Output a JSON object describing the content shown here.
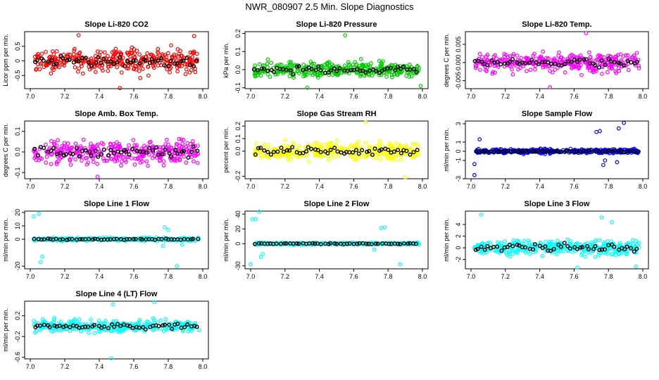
{
  "main_title": "NWR_080907  2.5 Min. Slope Diagnostics",
  "colors": {
    "black": "#000000"
  },
  "chart_data": [
    {
      "type": "scatter",
      "title": "Slope Li-820 CO2",
      "ylabel": "Licor ppm per min.",
      "xlim": [
        7.0,
        8.0
      ],
      "ylim": [
        -0.95,
        1.0
      ],
      "xticks": [
        "7.0",
        "7.2",
        "7.4",
        "7.6",
        "7.8",
        "8.0"
      ],
      "yticks": [
        "-0.5",
        "0",
        "0.5"
      ],
      "color": "#ff0000",
      "spread": 0.38,
      "clip": 0.92,
      "outliers": [
        [
          7.28,
          0.88
        ],
        [
          7.52,
          -0.93
        ],
        [
          7.95,
          0.85
        ]
      ]
    },
    {
      "type": "scatter",
      "title": "Slope Li-820 Pressure",
      "ylabel": "kPa per min.",
      "xlim": [
        7.0,
        8.0
      ],
      "ylim": [
        -0.105,
        0.21
      ],
      "xticks": [
        "7.0",
        "7.2",
        "7.4",
        "7.6",
        "7.8",
        "8.0"
      ],
      "yticks": [
        "-0.1",
        "0.0",
        "0.1",
        "0.2"
      ],
      "color": "#00cc00",
      "spread": 0.038,
      "clip": 0.12,
      "outliers": [
        [
          7.33,
          -0.1
        ],
        [
          7.99,
          -0.09
        ],
        [
          7.55,
          0.19
        ]
      ]
    },
    {
      "type": "scatter",
      "title": "Slope Li-820 Temp.",
      "ylabel": "degrees C per min.",
      "xlim": [
        7.0,
        8.0
      ],
      "ylim": [
        -0.0072,
        0.0085
      ],
      "xticks": [
        "7.0",
        "7.2",
        "7.4",
        "7.6",
        "7.8",
        "8.0"
      ],
      "yticks": [
        "-0.005",
        "0.000",
        "0.005"
      ],
      "color": "#ff00ff",
      "spread": 0.0025,
      "clip": 0.0075,
      "outliers": [
        [
          7.67,
          0.0081
        ],
        [
          7.46,
          -0.0068
        ]
      ]
    },
    {
      "type": "scatter",
      "title": "Slope Amb. Box Temp.",
      "ylabel": "degrees C per min.",
      "xlim": [
        7.0,
        8.0
      ],
      "ylim": [
        -0.13,
        0.15
      ],
      "xticks": [
        "7.0",
        "7.2",
        "7.4",
        "7.6",
        "7.8",
        "8.0"
      ],
      "yticks": [
        "-0.1",
        "0.0",
        "0.1"
      ],
      "color": "#ff00ff",
      "spread": 0.055,
      "clip": 0.12,
      "outliers": [
        [
          7.39,
          -0.12
        ]
      ]
    },
    {
      "type": "scatter",
      "title": "Slope Gas Stream RH",
      "ylabel": "percent per min.",
      "xlim": [
        7.0,
        8.0
      ],
      "ylim": [
        -0.22,
        0.24
      ],
      "xticks": [
        "7.0",
        "7.2",
        "7.4",
        "7.6",
        "7.8",
        "8.0"
      ],
      "yticks": [
        "-0.2",
        "0.0",
        "0.1",
        "0.2"
      ],
      "color": "#ffff00",
      "spread": 0.07,
      "clip": 0.2,
      "outliers": [
        [
          7.67,
          0.23
        ],
        [
          7.9,
          -0.21
        ]
      ]
    },
    {
      "type": "scatter",
      "title": "Slope Sample Flow",
      "ylabel": "ml/min per min.",
      "xlim": [
        7.0,
        8.0
      ],
      "ylim": [
        -3.0,
        3.3
      ],
      "xticks": [
        "7.0",
        "7.2",
        "7.4",
        "7.6",
        "7.8",
        "8.0"
      ],
      "yticks": [
        "-3",
        "-1",
        "0",
        "1",
        "3"
      ],
      "color": "#0000ff",
      "spread": 0.22,
      "clip": 0.8,
      "outliers": [
        [
          7.02,
          -1.4
        ],
        [
          7.02,
          -2.6
        ],
        [
          7.05,
          1.3
        ],
        [
          7.73,
          2.1
        ],
        [
          7.75,
          2.2
        ],
        [
          7.86,
          2.5
        ],
        [
          7.89,
          3.1
        ],
        [
          7.77,
          -1.5
        ],
        [
          7.78,
          -1.0
        ],
        [
          7.85,
          -1.2
        ]
      ]
    },
    {
      "type": "scatter",
      "title": "Slope Line 1 Flow",
      "ylabel": "ml/min per min.",
      "xlim": [
        7.0,
        8.0
      ],
      "ylim": [
        -22,
        21
      ],
      "xticks": [
        "7.0",
        "7.2",
        "7.4",
        "7.6",
        "7.8",
        "8.0"
      ],
      "yticks": [
        "-20",
        "0",
        "10",
        "20"
      ],
      "color": "#00ffff",
      "spread": 1.1,
      "clip": 4,
      "outliers": [
        [
          7.02,
          17
        ],
        [
          7.05,
          19
        ],
        [
          7.06,
          -17
        ],
        [
          7.07,
          -13
        ],
        [
          7.78,
          9
        ],
        [
          7.8,
          7
        ],
        [
          7.77,
          -5
        ],
        [
          7.85,
          -20
        ],
        [
          7.88,
          -4
        ]
      ]
    },
    {
      "type": "scatter",
      "title": "Slope Line 2 Flow",
      "ylabel": "ml/min per min.",
      "xlim": [
        7.0,
        8.0
      ],
      "ylim": [
        -34,
        44
      ],
      "xticks": [
        "7.0",
        "7.2",
        "7.4",
        "7.6",
        "7.8",
        "8.0"
      ],
      "yticks": [
        "-30",
        "0",
        "20",
        "40"
      ],
      "color": "#00ffff",
      "spread": 1.3,
      "clip": 5,
      "outliers": [
        [
          7.01,
          33
        ],
        [
          7.03,
          33
        ],
        [
          7.05,
          43
        ],
        [
          7.0,
          -28
        ],
        [
          7.06,
          -18
        ],
        [
          7.07,
          -14
        ],
        [
          7.72,
          -8
        ],
        [
          7.76,
          21
        ],
        [
          7.78,
          22
        ],
        [
          7.87,
          -28
        ]
      ]
    },
    {
      "type": "scatter",
      "title": "Slope Line 3 Flow",
      "ylabel": "ml/min per min.",
      "xlim": [
        7.0,
        8.0
      ],
      "ylim": [
        -3.6,
        6.3
      ],
      "xticks": [
        "7.0",
        "7.2",
        "7.4",
        "7.6",
        "7.8",
        "8.0"
      ],
      "yticks": [
        "-2",
        "0",
        "2",
        "4"
      ],
      "color": "#00ffff",
      "spread": 1.2,
      "clip": 3.2,
      "outliers": [
        [
          7.06,
          5.7
        ],
        [
          7.62,
          -3.4
        ],
        [
          7.76,
          5.2
        ],
        [
          7.82,
          4.4
        ],
        [
          7.96,
          -3.2
        ]
      ]
    },
    {
      "type": "scatter",
      "title": "Slope Line 4 (LT) Flow",
      "ylabel": "ml/min per min.",
      "xlim": [
        7.0,
        8.0
      ],
      "ylim": [
        -0.63,
        0.48
      ],
      "xticks": [
        "7.0",
        "7.2",
        "7.4",
        "7.6",
        "7.8",
        "8.0"
      ],
      "yticks": [
        "-0.6",
        "-0.2",
        "0.2"
      ],
      "color": "#00ffff",
      "spread": 0.11,
      "clip": 0.4,
      "outliers": [
        [
          7.47,
          -0.62
        ],
        [
          7.72,
          0.46
        ],
        [
          7.48,
          0.42
        ]
      ]
    }
  ]
}
